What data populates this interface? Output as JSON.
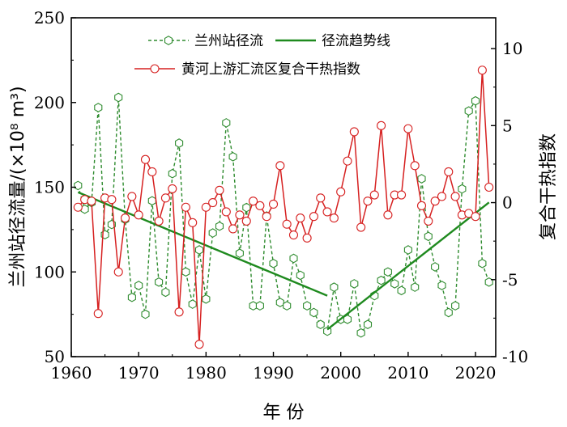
{
  "chart_data": {
    "type": "line",
    "title": "",
    "xlabel": "年 份",
    "ylabel_left": "兰州站径流量/(×10⁸ m³)",
    "ylabel_right": "复合干热指数",
    "xlim": [
      1960,
      2023
    ],
    "ylim_left": [
      50,
      250
    ],
    "ylim_right": [
      -10,
      12
    ],
    "x_ticks": [
      "1960",
      "1970",
      "1980",
      "1990",
      "2000",
      "2010",
      "2020"
    ],
    "y_left_ticks": [
      "50",
      "100",
      "150",
      "200",
      "250"
    ],
    "y_right_ticks": [
      "-10",
      "-5",
      "0",
      "5",
      "10"
    ],
    "grid": false,
    "legend_position": "top-center",
    "colors": {
      "runoff": "#2e8b2e",
      "trend": "#1f8a1f",
      "index": "#d62020"
    },
    "series": [
      {
        "name": "兰州站径流",
        "axis": "left",
        "style": "dashed-hexagon",
        "x": [
          1961,
          1962,
          1963,
          1964,
          1965,
          1966,
          1967,
          1968,
          1969,
          1970,
          1971,
          1972,
          1973,
          1974,
          1975,
          1976,
          1977,
          1978,
          1979,
          1980,
          1981,
          1982,
          1983,
          1984,
          1985,
          1986,
          1987,
          1988,
          1989,
          1990,
          1991,
          1992,
          1993,
          1994,
          1995,
          1996,
          1997,
          1998,
          1999,
          2000,
          2001,
          2002,
          2003,
          2004,
          2005,
          2006,
          2007,
          2008,
          2009,
          2010,
          2011,
          2012,
          2013,
          2014,
          2015,
          2016,
          2017,
          2018,
          2019,
          2020,
          2021,
          2022
        ],
        "values": [
          151,
          137,
          141,
          197,
          122,
          128,
          203,
          131,
          85,
          92,
          75,
          142,
          94,
          88,
          158,
          176,
          100,
          81,
          113,
          84,
          123,
          127,
          188,
          168,
          111,
          138,
          80,
          80,
          133,
          105,
          82,
          80,
          108,
          98,
          80,
          76,
          69,
          65,
          91,
          72,
          72,
          93,
          64,
          69,
          86,
          95,
          100,
          93,
          89,
          113,
          91,
          155,
          121,
          103,
          92,
          76,
          80,
          149,
          195,
          201,
          105,
          94
        ]
      },
      {
        "name": "径流趋势线",
        "axis": "left",
        "style": "solid",
        "segments": [
          {
            "x": [
              1961,
              1998
            ],
            "values": [
              147,
              86
            ]
          },
          {
            "x": [
              1998,
              2022
            ],
            "values": [
              66,
              141
            ]
          }
        ]
      },
      {
        "name": "黄河上游汇流区复合干热指数",
        "axis": "right",
        "style": "solid-circle",
        "x": [
          1961,
          1962,
          1963,
          1964,
          1965,
          1966,
          1967,
          1968,
          1969,
          1970,
          1971,
          1972,
          1973,
          1974,
          1975,
          1976,
          1977,
          1978,
          1979,
          1980,
          1981,
          1982,
          1983,
          1984,
          1985,
          1986,
          1987,
          1988,
          1989,
          1990,
          1991,
          1992,
          1993,
          1994,
          1995,
          1996,
          1997,
          1998,
          1999,
          2000,
          2001,
          2002,
          2003,
          2004,
          2005,
          2006,
          2007,
          2008,
          2009,
          2010,
          2011,
          2012,
          2013,
          2014,
          2015,
          2016,
          2017,
          2018,
          2019,
          2020,
          2021,
          2022
        ],
        "values": [
          -0.3,
          0.2,
          0.1,
          -7.2,
          0.3,
          0.2,
          -4.5,
          -1.0,
          0.4,
          -0.8,
          2.8,
          2.0,
          -1.2,
          0.3,
          0.9,
          -7.1,
          -0.3,
          -1.3,
          -9.2,
          -0.3,
          0.0,
          0.8,
          -0.6,
          -1.7,
          -0.8,
          -1.2,
          0.1,
          -0.2,
          -0.9,
          -0.1,
          2.4,
          -1.4,
          -2.1,
          -1.0,
          -2.3,
          -0.9,
          0.3,
          -0.6,
          -1.0,
          0.7,
          2.7,
          4.6,
          -1.6,
          0.1,
          0.5,
          5.0,
          -0.8,
          0.5,
          0.5,
          4.8,
          2.4,
          -0.2,
          -1.2,
          0.1,
          0.4,
          2.0,
          0.4,
          -0.8,
          -0.7,
          -0.9,
          8.6,
          1.0
        ]
      }
    ]
  }
}
